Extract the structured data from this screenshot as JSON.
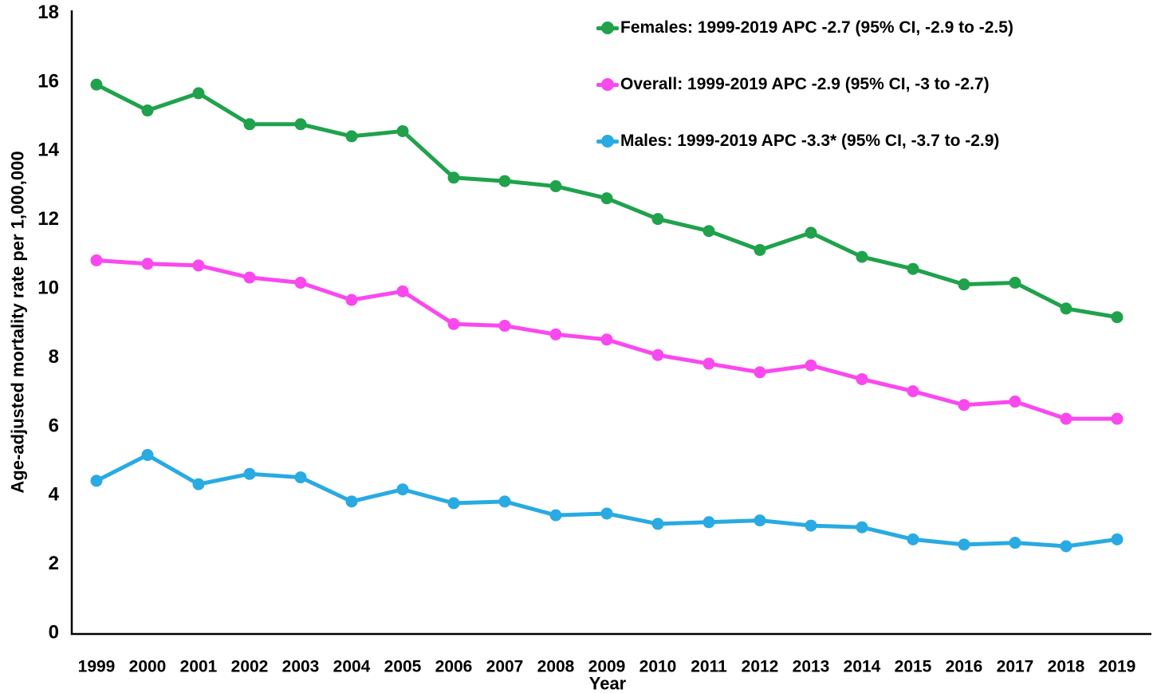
{
  "chart_data": {
    "type": "line",
    "title": "",
    "xlabel": "Year",
    "ylabel": "Age-adjusted mortality rate per 1,000,000",
    "ylim": [
      0,
      18
    ],
    "y_ticks": [
      0,
      2,
      4,
      6,
      8,
      10,
      12,
      14,
      16,
      18
    ],
    "grid": false,
    "legend_position": "inside-top-right",
    "categories": [
      "1999",
      "2000",
      "2001",
      "2002",
      "2003",
      "2004",
      "2005",
      "2006",
      "2007",
      "2008",
      "2009",
      "2010",
      "2011",
      "2012",
      "2013",
      "2014",
      "2015",
      "2016",
      "2017",
      "2018",
      "2019"
    ],
    "series": [
      {
        "name": "Females",
        "label": "Females: 1999-2019 APC -2.7 (95% CI, -2.9 to -2.5)",
        "color": "#1FA24B",
        "values": [
          15.9,
          15.15,
          15.65,
          14.75,
          14.75,
          14.4,
          14.55,
          13.2,
          13.1,
          12.95,
          12.6,
          12.0,
          11.65,
          11.1,
          11.6,
          10.9,
          10.55,
          10.1,
          10.15,
          9.4,
          9.15
        ]
      },
      {
        "name": "Overall",
        "label": "Overall: 1999-2019 APC -2.9 (95% CI, -3 to -2.7)",
        "color": "#FA48EF",
        "values": [
          10.8,
          10.7,
          10.65,
          10.3,
          10.15,
          9.65,
          9.9,
          8.95,
          8.9,
          8.65,
          8.5,
          8.05,
          7.8,
          7.55,
          7.75,
          7.35,
          7.0,
          6.6,
          6.7,
          6.2,
          6.2
        ]
      },
      {
        "name": "Males",
        "label": "Males: 1999-2019 APC -3.3* (95% CI, -3.7 to -2.9)",
        "color": "#29AAE2",
        "values": [
          4.4,
          5.15,
          4.3,
          4.6,
          4.5,
          3.8,
          4.15,
          3.75,
          3.8,
          3.4,
          3.45,
          3.15,
          3.2,
          3.25,
          3.1,
          3.05,
          2.7,
          2.55,
          2.6,
          2.5,
          2.7
        ]
      }
    ],
    "axis_color": "#000000",
    "background_color": "#ffffff"
  }
}
